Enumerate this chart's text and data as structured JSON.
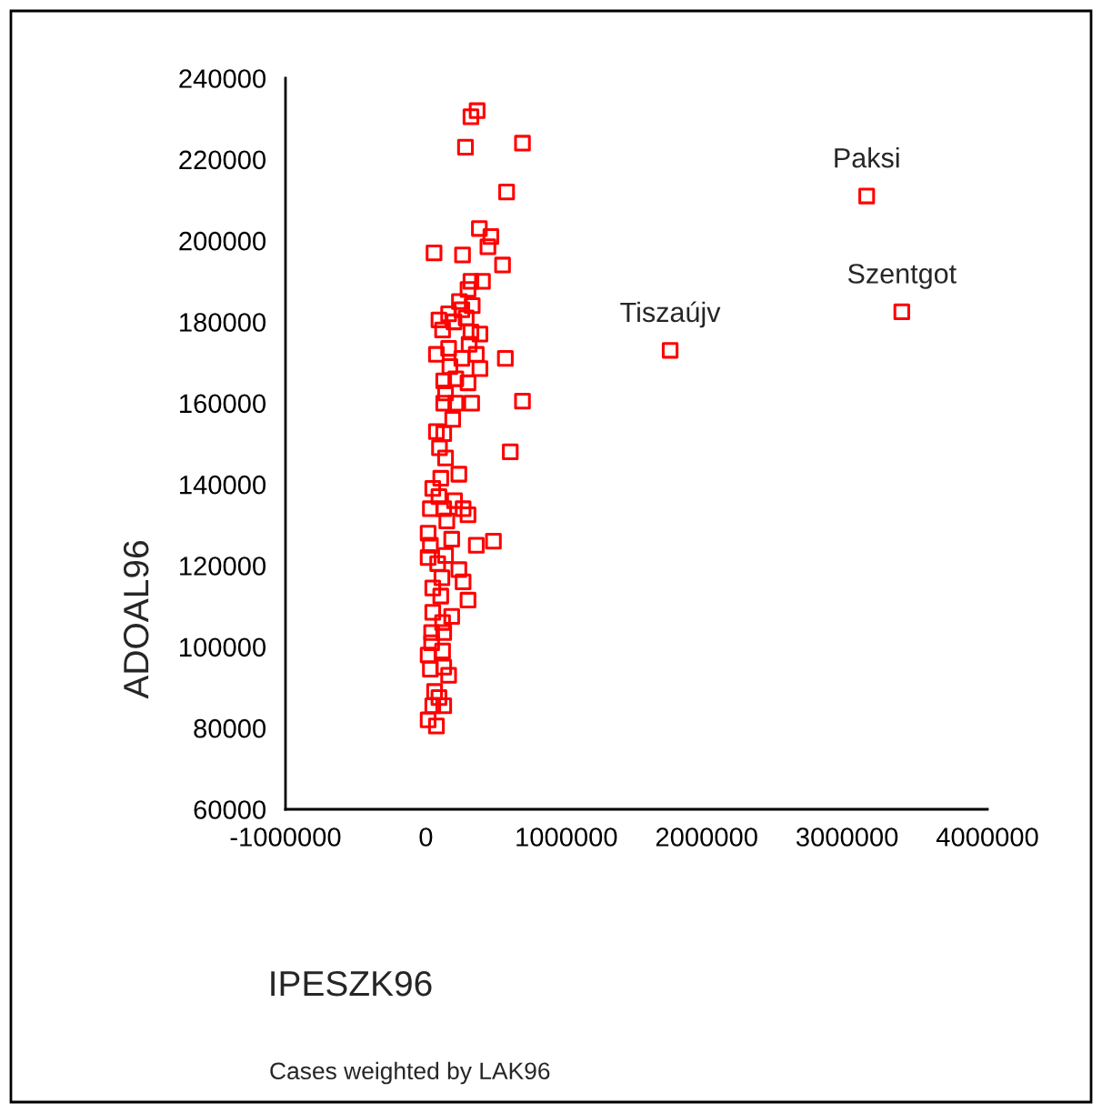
{
  "chart_data": {
    "type": "scatter",
    "xlabel": "IPESZK96",
    "ylabel": "ADOAL96",
    "x": [
      365000,
      321000,
      282000,
      688000,
      575000,
      381000,
      463000,
      442000,
      58000,
      261000,
      546000,
      321000,
      403000,
      300000,
      239000,
      330000,
      256000,
      162000,
      93000,
      200000,
      287000,
      119000,
      321000,
      385000,
      308000,
      75000,
      162000,
      256000,
      359000,
      566000,
      385000,
      171000,
      127000,
      213000,
      300000,
      140000,
      127000,
      213000,
      326000,
      688000,
      601000,
      191000,
      75000,
      127000,
      97000,
      140000,
      235000,
      106000,
      49000,
      93000,
      204000,
      32000,
      127000,
      265000,
      300000,
      149000,
      16000,
      184000,
      359000,
      481000,
      32000,
      16000,
      140000,
      84000,
      235000,
      114000,
      265000,
      49000,
      106000,
      300000,
      49000,
      184000,
      119000,
      41000,
      127000,
      41000,
      119000,
      16000,
      127000,
      32000,
      162000,
      62000,
      93000,
      49000,
      127000,
      16000,
      75000,
      3140000,
      3390000,
      1740000
    ],
    "series": [
      {
        "color": "#ff0000",
        "values": [
          232000,
          230500,
          223000,
          224000,
          212000,
          203000,
          201000,
          198500,
          197000,
          196500,
          194000,
          190000,
          190000,
          188000,
          185000,
          184000,
          183000,
          182000,
          180500,
          180000,
          181000,
          178000,
          177500,
          177000,
          174500,
          172000,
          173500,
          171000,
          172000,
          171000,
          168500,
          169000,
          165500,
          166000,
          165000,
          162500,
          160000,
          160000,
          160000,
          160500,
          148000,
          156000,
          153000,
          152500,
          149000,
          146500,
          142500,
          141500,
          139000,
          137000,
          136000,
          134000,
          134000,
          134000,
          132500,
          131000,
          128000,
          126500,
          125000,
          126000,
          125000,
          122000,
          122500,
          120500,
          119000,
          117000,
          116000,
          114500,
          112500,
          111500,
          108500,
          107500,
          106000,
          103500,
          103500,
          101000,
          99000,
          98000,
          95000,
          94500,
          93000,
          89000,
          87500,
          85500,
          85500,
          82000,
          80500,
          211000,
          182500,
          173000
        ]
      }
    ],
    "marker": "square",
    "xlim": [
      -1000000,
      4000000
    ],
    "xticks": [
      -1000000,
      0,
      1000000,
      2000000,
      3000000,
      4000000
    ],
    "ylim": [
      60000,
      240000
    ],
    "yticks": [
      60000,
      80000,
      100000,
      120000,
      140000,
      160000,
      180000,
      200000,
      220000,
      240000
    ],
    "grid": false,
    "annotations": [
      {
        "text": "Paksi",
        "x": 3140000,
        "y": 211000
      },
      {
        "text": "Szentgot",
        "x": 3390000,
        "y": 182500
      },
      {
        "text": "Tiszaújv",
        "x": 1740000,
        "y": 173000
      },
      "Cases weighted by LAK96"
    ]
  }
}
